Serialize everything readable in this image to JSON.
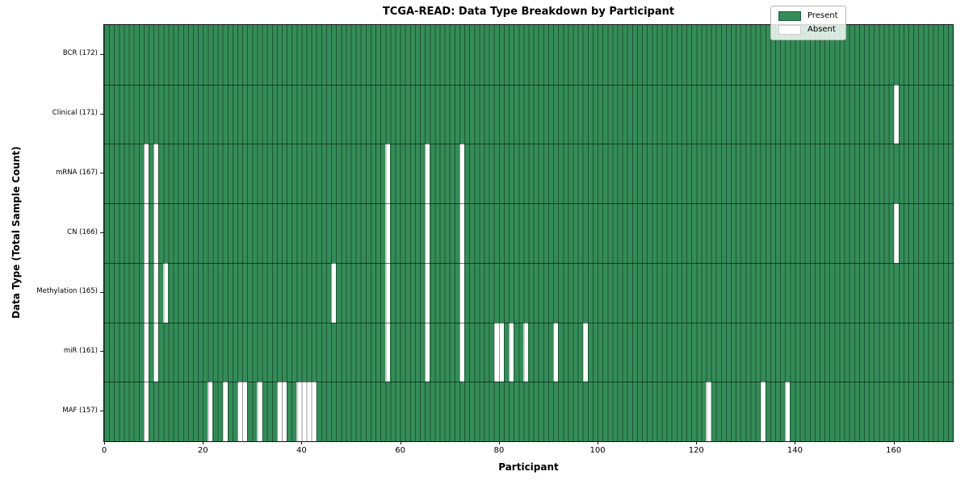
{
  "chart_data": {
    "type": "heatmap",
    "title": "TCGA-READ: Data Type Breakdown by Participant",
    "xlabel": "Participant",
    "ylabel": "Data Type (Total Sample Count)",
    "n_participants": 172,
    "x_ticks": [
      0,
      20,
      40,
      60,
      80,
      100,
      120,
      140,
      160
    ],
    "grid": true,
    "legend_position": "upper right",
    "legend": [
      {
        "label": "Present",
        "color": "#348c58"
      },
      {
        "label": "Absent",
        "color": "#ffffff"
      }
    ],
    "colors": {
      "present": "#348c58",
      "absent": "#ffffff",
      "gridline": "rgba(0,0,0,0.40)",
      "row_boundary": "rgba(0,0,0,0.55)",
      "spine": "#141414"
    },
    "rows": [
      {
        "label": "BCR (172)",
        "data_type": "BCR",
        "total_sample_count": 172,
        "absent_participants": []
      },
      {
        "label": "Clinical (171)",
        "data_type": "Clinical",
        "total_sample_count": 171,
        "absent_participants": [
          160
        ]
      },
      {
        "label": "mRNA (167)",
        "data_type": "mRNA",
        "total_sample_count": 167,
        "absent_participants": [
          8,
          10,
          57,
          65,
          72
        ]
      },
      {
        "label": "CN (166)",
        "data_type": "CN",
        "total_sample_count": 166,
        "absent_participants": [
          8,
          10,
          57,
          65,
          72,
          160
        ]
      },
      {
        "label": "Methylation (165)",
        "data_type": "Methylation",
        "total_sample_count": 165,
        "absent_participants": [
          8,
          10,
          12,
          46,
          57,
          65,
          72
        ]
      },
      {
        "label": "miR (161)",
        "data_type": "miR",
        "total_sample_count": 161,
        "absent_participants": [
          8,
          10,
          57,
          65,
          72,
          79,
          80,
          82,
          85,
          91,
          97
        ]
      },
      {
        "label": "MAF (157)",
        "data_type": "MAF",
        "total_sample_count": 157,
        "absent_participants": [
          8,
          21,
          24,
          27,
          28,
          31,
          35,
          36,
          39,
          40,
          41,
          42,
          122,
          133,
          138
        ]
      }
    ]
  }
}
